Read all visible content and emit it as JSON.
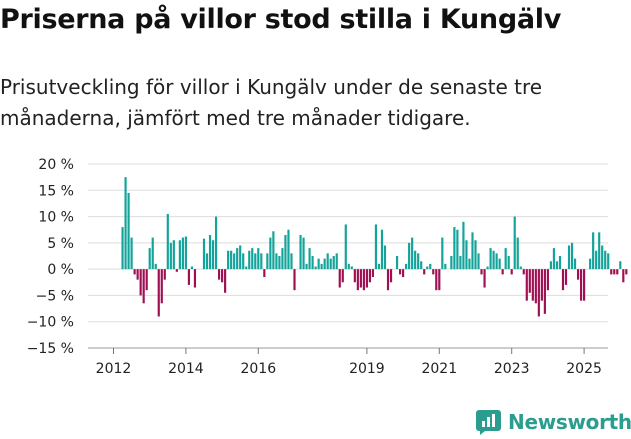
{
  "title": "Priserna på villor stod stilla i Kungälv",
  "subtitle": "Prisutveckling för villor i Kungälv under de senaste tre månaderna, jämfört med tre månader tidigare.",
  "brand": {
    "name": "Newsworthy",
    "icon": "newsworthy-logo-icon"
  },
  "colors": {
    "positive": "#12a39a",
    "negative": "#9e1053",
    "grid": "#dddddd",
    "text": "#222222"
  },
  "chart_data": {
    "type": "bar",
    "title": "Priserna på villor stod stilla i Kungälv",
    "ylabel": "",
    "xlabel": "",
    "ylim": [
      -15,
      20
    ],
    "y_ticks": [
      20,
      15,
      10,
      5,
      0,
      -5,
      -10,
      -15
    ],
    "y_tick_labels": [
      "20 %",
      "15 %",
      "10 %",
      "5 %",
      "0 %",
      "−5 %",
      "−10 %",
      "−15 %"
    ],
    "x_ticks": [
      2012,
      2014,
      2016,
      2019,
      2021,
      2023,
      2025
    ],
    "x_tick_labels": [
      "2012",
      "2014",
      "2016",
      "2019",
      "2021",
      "2023",
      "2025"
    ],
    "x_start": 2012,
    "months_per_bar": 1,
    "annotation": {
      "text": "0 %",
      "value": 0
    },
    "values": [
      0,
      0,
      0,
      8,
      17.5,
      14.5,
      6,
      -1,
      -2,
      -5,
      -6.5,
      -4,
      4,
      6,
      1,
      -9,
      -6.5,
      -2,
      10.5,
      5,
      5.5,
      -0.5,
      5.5,
      6,
      6.2,
      -3,
      0.5,
      -3.5,
      0,
      0,
      5.8,
      3,
      6.5,
      5.5,
      10,
      -2,
      -2.5,
      -4.5,
      3.5,
      3.5,
      3,
      4,
      4.5,
      3,
      0.5,
      3.5,
      4,
      3,
      4,
      3,
      -1.5,
      3,
      6,
      7.2,
      3,
      2.5,
      4,
      6.5,
      7.5,
      3,
      -4,
      0,
      6.5,
      6,
      1,
      4,
      2.5,
      0.5,
      2,
      1,
      2,
      3,
      2,
      2.5,
      3,
      -3.5,
      -2.5,
      8.5,
      1,
      0.5,
      -2.5,
      -4,
      -3.5,
      -4,
      -3.5,
      -2.5,
      -1.5,
      8.5,
      1,
      7.5,
      4.5,
      -4,
      -2.5,
      0,
      2.5,
      -1,
      -1.5,
      1,
      5,
      6,
      3.5,
      3,
      1.5,
      -1,
      0.5,
      1,
      -1,
      -4,
      -4,
      6,
      1,
      0,
      2.5,
      8,
      7.5,
      2.5,
      9,
      5.5,
      2,
      7,
      5.5,
      3,
      -1,
      -3.5,
      0.5,
      4,
      3.5,
      3,
      2,
      -1,
      4,
      2.5,
      -1,
      10,
      6,
      0.5,
      -1,
      -6,
      -4.5,
      -6,
      -6.5,
      -9,
      -6,
      -8.5,
      -4,
      1.5,
      4,
      1.5,
      2.5,
      -4,
      -3,
      4.5,
      5,
      2,
      -2,
      -6,
      -6,
      0,
      2,
      7,
      3.5,
      7,
      4.5,
      3.5,
      3,
      -1,
      -1,
      -1,
      1.5,
      -2.5,
      -1
    ]
  }
}
